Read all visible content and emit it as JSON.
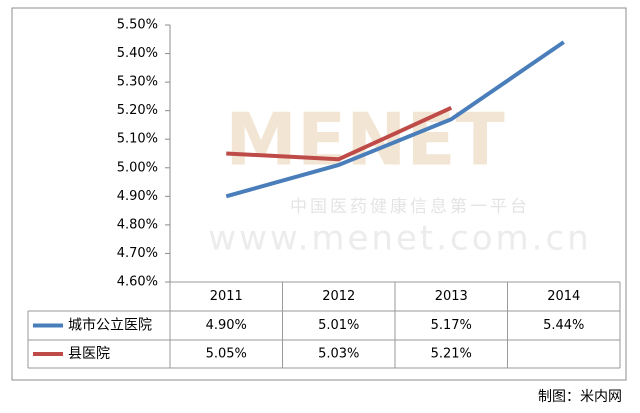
{
  "chart_data": {
    "type": "line",
    "categories": [
      "2011",
      "2012",
      "2013",
      "2014"
    ],
    "series": [
      {
        "name": "城市公立医院",
        "color": "#4a7ebb",
        "values": [
          4.9,
          5.01,
          5.17,
          5.44
        ],
        "value_labels": [
          "4.90%",
          "5.01%",
          "5.17%",
          "5.44%"
        ]
      },
      {
        "name": "县医院",
        "color": "#be4b48",
        "values": [
          5.05,
          5.03,
          5.21,
          null
        ],
        "value_labels": [
          "5.05%",
          "5.03%",
          "5.21%",
          null
        ]
      }
    ],
    "ylim": [
      4.6,
      5.5
    ],
    "yticks": [
      {
        "value": 4.6,
        "label": "4.60%"
      },
      {
        "value": 4.7,
        "label": "4.70%"
      },
      {
        "value": 4.8,
        "label": "4.80%"
      },
      {
        "value": 4.9,
        "label": "4.90%"
      },
      {
        "value": 5.0,
        "label": "5.00%"
      },
      {
        "value": 5.1,
        "label": "5.10%"
      },
      {
        "value": 5.2,
        "label": "5.20%"
      },
      {
        "value": 5.3,
        "label": "5.30%"
      },
      {
        "value": 5.4,
        "label": "5.40%"
      },
      {
        "value": 5.5,
        "label": "5.50%"
      }
    ],
    "grid": false,
    "data_table": true
  },
  "watermark": {
    "brand": "MENET",
    "slogan": "中国医药健康信息第一平台",
    "url": "www.menet.com.cn"
  },
  "footer": "制图：米内网"
}
